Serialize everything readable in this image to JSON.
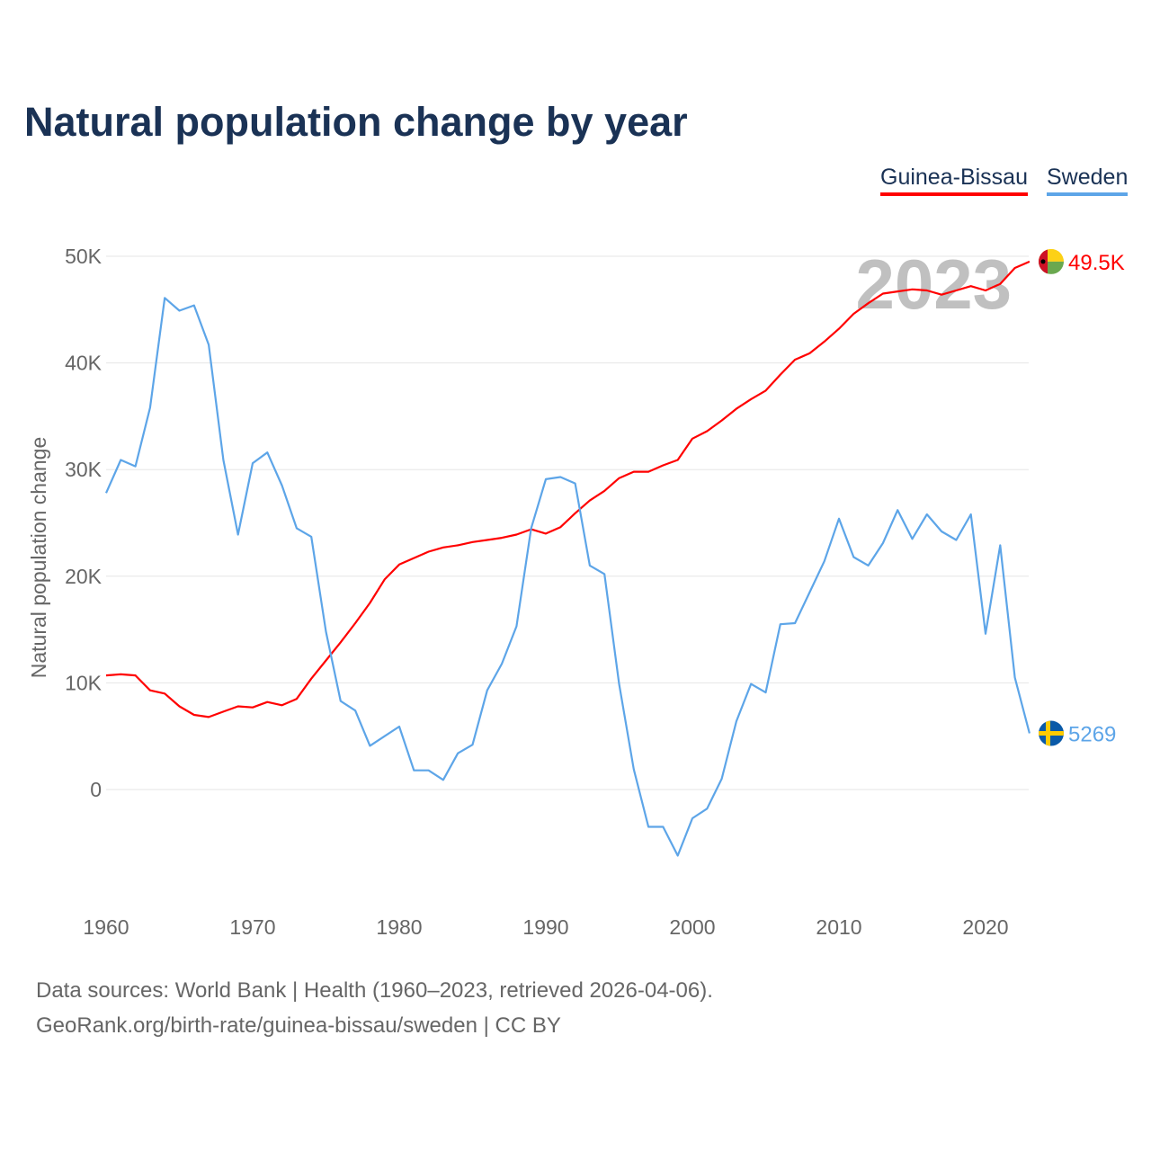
{
  "title": "Natural population change by year",
  "legend": [
    {
      "label": "Guinea-Bissau"
    },
    {
      "label": "Sweden"
    }
  ],
  "year_label": "2023",
  "sources": [
    "Data sources: World Bank | Health (1960–2023, retrieved 2026-04-06).",
    "GeoRank.org/birth-rate/guinea-bissau/sweden | CC BY"
  ],
  "chart_data": {
    "type": "line",
    "title": "Natural population change by year",
    "xlabel": "",
    "ylabel": "Natural population change",
    "xlim": [
      1960,
      2023
    ],
    "ylim": [
      -10000,
      50000
    ],
    "x_ticks": [
      1960,
      1970,
      1980,
      1990,
      2000,
      2010,
      2020
    ],
    "y_ticks": [
      {
        "v": 0,
        "label": "0"
      },
      {
        "v": 10000,
        "label": "10K"
      },
      {
        "v": 20000,
        "label": "20K"
      },
      {
        "v": 30000,
        "label": "30K"
      },
      {
        "v": 40000,
        "label": "40K"
      },
      {
        "v": 50000,
        "label": "50K"
      }
    ],
    "grid": true,
    "legend_position": "top-right",
    "x_start": 1960,
    "series": [
      {
        "name": "Guinea-Bissau",
        "color": "#ff0000",
        "end_label": "49.5K",
        "flag": "guinea-bissau",
        "values": [
          10700,
          10800,
          10700,
          9300,
          9000,
          7800,
          7000,
          6800,
          7300,
          7800,
          7700,
          8200,
          7900,
          8500,
          10400,
          12100,
          13800,
          15600,
          17500,
          19700,
          21100,
          21700,
          22300,
          22700,
          22900,
          23200,
          23400,
          23600,
          23900,
          24400,
          24000,
          24600,
          25900,
          27100,
          28000,
          29200,
          29800,
          29800,
          30400,
          30900,
          32900,
          33600,
          34600,
          35700,
          36600,
          37400,
          38900,
          40300,
          40900,
          42000,
          43200,
          44600,
          45600,
          46500,
          46700,
          46900,
          46800,
          46400,
          46800,
          47200,
          46800,
          47400,
          48900,
          49500
        ]
      },
      {
        "name": "Sweden",
        "color": "#5da5e8",
        "end_label": "5269",
        "flag": "sweden",
        "values": [
          27800,
          30900,
          30300,
          35800,
          46100,
          44900,
          45400,
          41700,
          30900,
          23900,
          30600,
          31600,
          28500,
          24500,
          23700,
          14800,
          8300,
          7400,
          4100,
          5000,
          5900,
          1800,
          1800,
          900,
          3400,
          4200,
          9300,
          11800,
          15300,
          24500,
          29100,
          29300,
          28700,
          21000,
          20200,
          9900,
          1900,
          -3500,
          -3500,
          -6200,
          -2700,
          -1800,
          1000,
          6400,
          9900,
          9100,
          15500,
          15600,
          18500,
          21400,
          25400,
          21800,
          21000,
          23100,
          26200,
          23500,
          25800,
          24200,
          23400,
          25800,
          14600,
          22900,
          10500,
          5269
        ]
      }
    ]
  }
}
